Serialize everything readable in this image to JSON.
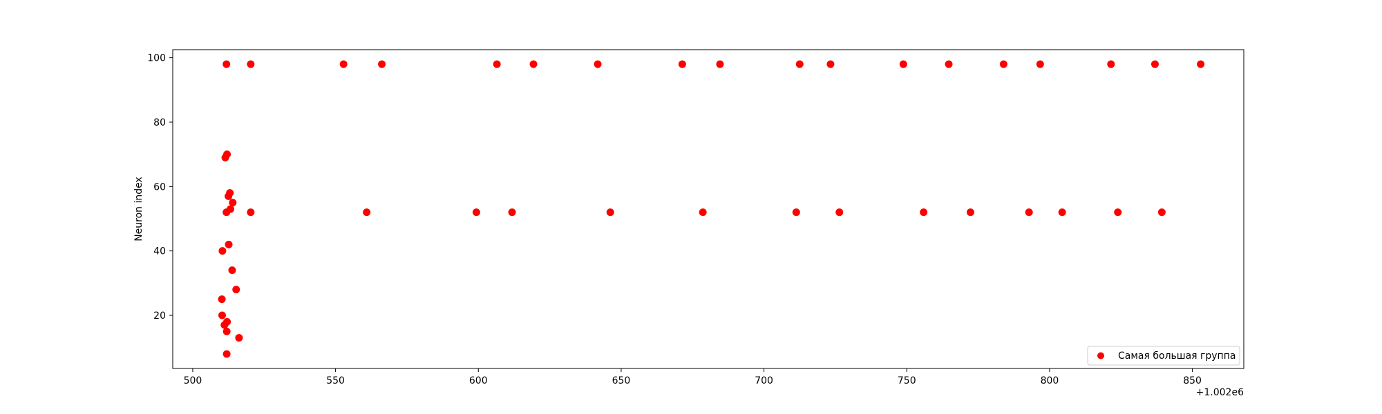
{
  "chart_data": {
    "type": "scatter",
    "title": "",
    "xlabel": "",
    "ylabel": "Neuron index",
    "x_offset_label": "+1.002e6",
    "xlim": [
      493,
      868
    ],
    "ylim": [
      3.5,
      102.5
    ],
    "xticks": [
      500,
      550,
      600,
      650,
      700,
      750,
      800,
      850
    ],
    "yticks": [
      20,
      40,
      60,
      80,
      100
    ],
    "grid": false,
    "legend_position": "lower-right",
    "colors": {
      "marker": "#ff0000",
      "axes": "#000000",
      "background": "#ffffff"
    },
    "series": [
      {
        "name": "Самая большая группа",
        "color": "#ff0000",
        "points": [
          {
            "x": 511.8,
            "y": 98
          },
          {
            "x": 520.3,
            "y": 98
          },
          {
            "x": 552.8,
            "y": 98
          },
          {
            "x": 566.2,
            "y": 98
          },
          {
            "x": 606.5,
            "y": 98
          },
          {
            "x": 619.3,
            "y": 98
          },
          {
            "x": 641.8,
            "y": 98
          },
          {
            "x": 671.4,
            "y": 98
          },
          {
            "x": 684.6,
            "y": 98
          },
          {
            "x": 712.5,
            "y": 98
          },
          {
            "x": 723.3,
            "y": 98
          },
          {
            "x": 748.8,
            "y": 98
          },
          {
            "x": 764.7,
            "y": 98
          },
          {
            "x": 783.9,
            "y": 98
          },
          {
            "x": 796.7,
            "y": 98
          },
          {
            "x": 821.5,
            "y": 98
          },
          {
            "x": 836.9,
            "y": 98
          },
          {
            "x": 852.9,
            "y": 98
          },
          {
            "x": 511.4,
            "y": 69
          },
          {
            "x": 512.0,
            "y": 70
          },
          {
            "x": 512.5,
            "y": 57
          },
          {
            "x": 513.0,
            "y": 58
          },
          {
            "x": 514.0,
            "y": 55
          },
          {
            "x": 513.2,
            "y": 53
          },
          {
            "x": 511.8,
            "y": 52
          },
          {
            "x": 520.3,
            "y": 52
          },
          {
            "x": 560.9,
            "y": 52
          },
          {
            "x": 599.3,
            "y": 52
          },
          {
            "x": 611.8,
            "y": 52
          },
          {
            "x": 646.2,
            "y": 52
          },
          {
            "x": 678.6,
            "y": 52
          },
          {
            "x": 711.3,
            "y": 52
          },
          {
            "x": 726.4,
            "y": 52
          },
          {
            "x": 755.9,
            "y": 52
          },
          {
            "x": 772.3,
            "y": 52
          },
          {
            "x": 792.8,
            "y": 52
          },
          {
            "x": 804.4,
            "y": 52
          },
          {
            "x": 823.9,
            "y": 52
          },
          {
            "x": 839.3,
            "y": 52
          },
          {
            "x": 512.6,
            "y": 42
          },
          {
            "x": 510.4,
            "y": 40
          },
          {
            "x": 513.8,
            "y": 34
          },
          {
            "x": 515.2,
            "y": 28
          },
          {
            "x": 510.2,
            "y": 25
          },
          {
            "x": 510.3,
            "y": 20
          },
          {
            "x": 512.0,
            "y": 18
          },
          {
            "x": 511.1,
            "y": 17
          },
          {
            "x": 511.9,
            "y": 15
          },
          {
            "x": 516.2,
            "y": 13
          },
          {
            "x": 511.9,
            "y": 8
          }
        ]
      }
    ]
  }
}
